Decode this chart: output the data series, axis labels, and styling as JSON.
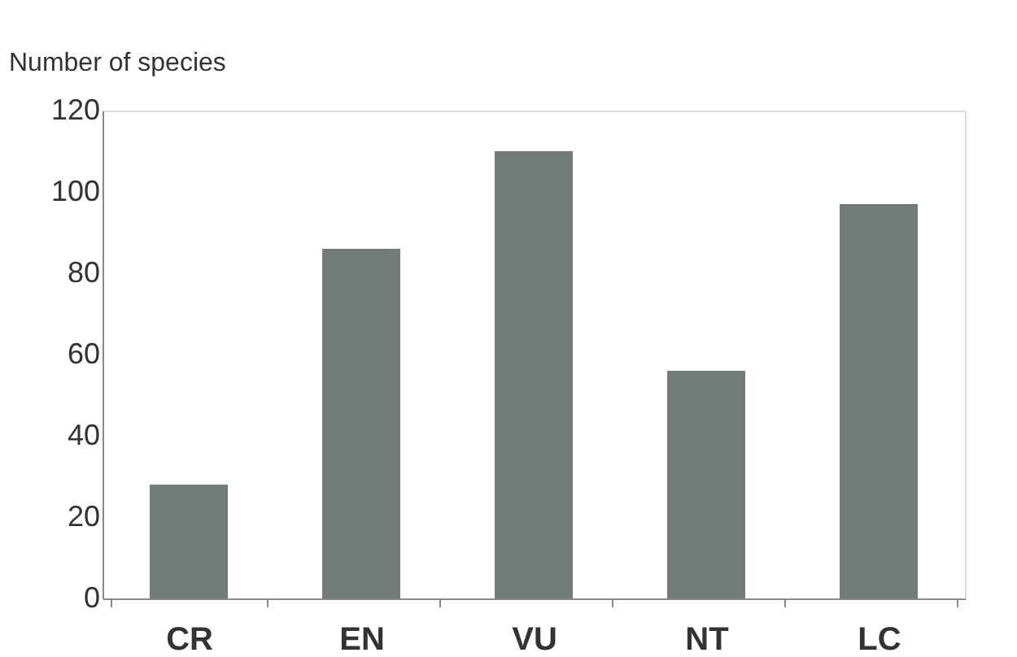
{
  "chart_data": {
    "type": "bar",
    "ylabel": "Number of species",
    "categories": [
      "CR",
      "EN",
      "VU",
      "NT",
      "LC"
    ],
    "values": [
      28,
      86,
      110,
      56,
      97
    ],
    "color": "#727c78",
    "ylim": [
      0,
      120
    ],
    "yticks": [
      0,
      20,
      40,
      60,
      80,
      100,
      120
    ],
    "grid": false
  }
}
